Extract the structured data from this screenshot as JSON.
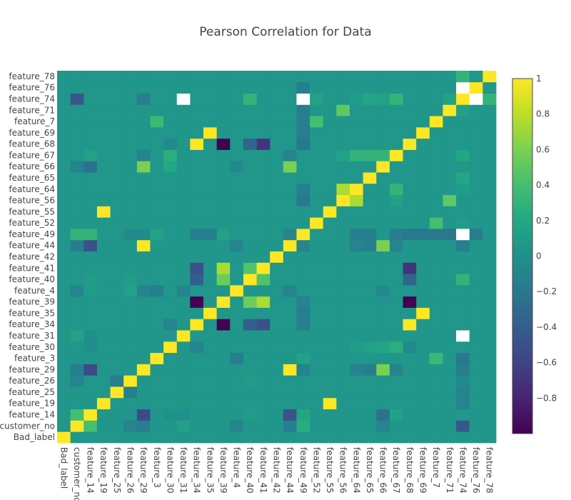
{
  "chart_data": {
    "type": "heatmap",
    "title": "Pearson Correlation for Data",
    "xlabel": "",
    "ylabel": "",
    "colorscale": "viridis",
    "zlim": [
      -1,
      1
    ],
    "colorbar_ticks": [
      {
        "value": 1,
        "label": "1"
      },
      {
        "value": 0.8,
        "label": "0.8"
      },
      {
        "value": 0.6,
        "label": "0.6"
      },
      {
        "value": 0.4,
        "label": "0.4"
      },
      {
        "value": 0.2,
        "label": "0.2"
      },
      {
        "value": 0,
        "label": "0"
      },
      {
        "value": -0.2,
        "label": "−0.2"
      },
      {
        "value": -0.4,
        "label": "−0.4"
      },
      {
        "value": -0.6,
        "label": "−0.6"
      },
      {
        "value": -0.8,
        "label": "−0.8"
      }
    ],
    "x_labels": [
      "Bad_label",
      "customer_no",
      "feature_14",
      "feature_19",
      "feature_25",
      "feature_26",
      "feature_29",
      "feature_3",
      "feature_30",
      "feature_31",
      "feature_34",
      "feature_35",
      "feature_39",
      "feature_4",
      "feature_40",
      "feature_41",
      "feature_42",
      "feature_44",
      "feature_49",
      "feature_52",
      "feature_55",
      "feature_56",
      "feature_64",
      "feature_65",
      "feature_66",
      "feature_67",
      "feature_68",
      "feature_69",
      "feature_7",
      "feature_71",
      "feature_74",
      "feature_76",
      "feature_78"
    ],
    "y_labels": [
      "Bad_label",
      "customer_no",
      "feature_14",
      "feature_19",
      "feature_25",
      "feature_26",
      "feature_29",
      "feature_3",
      "feature_30",
      "feature_31",
      "feature_34",
      "feature_35",
      "feature_39",
      "feature_4",
      "feature_40",
      "feature_41",
      "feature_42",
      "feature_44",
      "feature_49",
      "feature_52",
      "feature_55",
      "feature_56",
      "feature_64",
      "feature_65",
      "feature_66",
      "feature_67",
      "feature_68",
      "feature_69",
      "feature_7",
      "feature_71",
      "feature_74",
      "feature_76",
      "feature_78"
    ],
    "z": [
      [
        1.0,
        0.05,
        0.05,
        0.05,
        0.05,
        0.05,
        0.05,
        0.05,
        0.05,
        0.05,
        0.05,
        0.05,
        0.05,
        0.05,
        0.05,
        0.05,
        0.05,
        0.05,
        0.05,
        0.05,
        0.05,
        0.05,
        0.05,
        0.05,
        0.05,
        0.05,
        0.05,
        0.05,
        0.05,
        0.05,
        0.05,
        0.05,
        0.05
      ],
      [
        0.05,
        1.0,
        0.4,
        0.05,
        0.05,
        -0.1,
        -0.15,
        0.05,
        0.05,
        0.15,
        0.05,
        0.05,
        0.05,
        -0.1,
        0.05,
        0.05,
        0.05,
        -0.15,
        0.25,
        0.05,
        0.05,
        0.05,
        0.05,
        0.05,
        -0.1,
        0.05,
        0.05,
        0.05,
        0.05,
        0.05,
        -0.45,
        0.05,
        0.05
      ],
      [
        0.05,
        0.4,
        1.0,
        0.05,
        0.05,
        0.05,
        -0.55,
        0.05,
        0.0,
        0.0,
        0.05,
        0.05,
        0.05,
        0.05,
        0.1,
        0.05,
        0.05,
        -0.5,
        0.2,
        0.05,
        0.05,
        0.05,
        0.05,
        0.05,
        -0.25,
        0.15,
        0.05,
        0.05,
        0.05,
        0.05,
        0.05,
        0.05,
        0.05
      ],
      [
        0.05,
        0.05,
        0.05,
        1.0,
        0.05,
        0.05,
        0.05,
        0.05,
        0.05,
        0.05,
        0.05,
        0.05,
        0.05,
        0.05,
        0.05,
        0.05,
        0.05,
        0.05,
        0.05,
        0.05,
        1.0,
        0.05,
        0.05,
        0.05,
        0.05,
        0.05,
        0.05,
        0.05,
        0.05,
        0.05,
        -0.1,
        0.05,
        0.05
      ],
      [
        0.05,
        0.05,
        0.05,
        0.05,
        1.0,
        -0.15,
        0.05,
        0.05,
        0.05,
        0.05,
        0.05,
        0.05,
        0.05,
        0.05,
        0.05,
        0.05,
        0.05,
        0.05,
        0.05,
        0.05,
        0.05,
        0.05,
        0.05,
        0.05,
        0.05,
        0.05,
        0.05,
        0.05,
        0.05,
        0.05,
        -0.1,
        0.05,
        0.05
      ],
      [
        0.05,
        -0.1,
        0.05,
        0.05,
        -0.15,
        1.0,
        0.05,
        0.05,
        0.05,
        0.05,
        0.05,
        0.05,
        0.05,
        0.05,
        0.1,
        0.05,
        0.05,
        0.05,
        0.05,
        0.05,
        0.05,
        0.05,
        0.05,
        0.05,
        0.05,
        0.05,
        0.05,
        0.05,
        0.05,
        0.05,
        -0.05,
        0.05,
        0.05
      ],
      [
        0.05,
        -0.15,
        -0.55,
        0.05,
        0.05,
        0.05,
        1.0,
        0.05,
        0.05,
        0.05,
        0.05,
        0.05,
        0.05,
        0.05,
        0.05,
        0.05,
        0.05,
        1.0,
        -0.1,
        0.05,
        0.05,
        0.05,
        -0.1,
        -0.15,
        0.6,
        -0.1,
        0.05,
        0.05,
        0.05,
        0.05,
        -0.15,
        0.05,
        0.05
      ],
      [
        0.05,
        0.05,
        0.05,
        0.05,
        0.05,
        0.05,
        0.05,
        1.0,
        0.05,
        0.05,
        0.05,
        0.05,
        0.05,
        -0.15,
        0.05,
        0.05,
        0.05,
        0.05,
        0.15,
        0.05,
        0.05,
        0.05,
        0.05,
        0.05,
        0.05,
        0.05,
        0.05,
        0.05,
        0.35,
        0.05,
        -0.2,
        0.05,
        0.05
      ],
      [
        0.05,
        0.05,
        0.0,
        0.05,
        0.05,
        0.05,
        0.05,
        0.05,
        1.0,
        0.05,
        -0.1,
        0.05,
        0.05,
        0.05,
        0.05,
        0.05,
        0.05,
        0.05,
        0.05,
        0.05,
        0.05,
        0.05,
        0.1,
        0.15,
        0.2,
        0.25,
        -0.05,
        0.05,
        0.05,
        0.05,
        0.05,
        0.05,
        0.05
      ],
      [
        0.05,
        0.15,
        0.0,
        0.05,
        0.05,
        0.05,
        0.05,
        0.05,
        0.05,
        1.0,
        0.05,
        0.05,
        0.05,
        0.05,
        0.05,
        0.05,
        0.05,
        0.05,
        0.05,
        0.05,
        0.05,
        0.05,
        0.05,
        0.05,
        0.05,
        0.05,
        0.05,
        0.05,
        0.05,
        0.05,
        null,
        0.05,
        0.05
      ],
      [
        0.05,
        0.05,
        0.05,
        0.05,
        0.05,
        0.05,
        0.05,
        0.05,
        -0.1,
        0.05,
        1.0,
        0.05,
        -1.0,
        0.05,
        -0.4,
        -0.5,
        0.05,
        0.05,
        -0.15,
        0.05,
        0.05,
        0.05,
        0.05,
        0.05,
        0.05,
        0.05,
        1.0,
        0.05,
        0.05,
        0.05,
        0.05,
        0.05,
        0.05
      ],
      [
        0.05,
        0.05,
        0.05,
        0.05,
        0.05,
        0.05,
        0.05,
        0.05,
        0.05,
        0.05,
        0.05,
        1.0,
        0.05,
        0.05,
        0.05,
        0.05,
        0.05,
        0.05,
        -0.15,
        0.05,
        0.05,
        0.05,
        0.05,
        0.05,
        0.05,
        0.05,
        0.05,
        1.0,
        0.05,
        0.05,
        0.05,
        0.05,
        0.05
      ],
      [
        0.05,
        0.05,
        0.05,
        0.05,
        0.05,
        0.05,
        0.05,
        0.05,
        0.05,
        0.05,
        -1.0,
        0.05,
        1.0,
        0.05,
        0.55,
        0.75,
        0.05,
        0.05,
        -0.1,
        0.05,
        0.05,
        0.05,
        0.05,
        0.05,
        0.05,
        0.05,
        -1.0,
        0.05,
        0.05,
        0.05,
        0.05,
        0.05,
        0.05
      ],
      [
        0.05,
        -0.1,
        0.1,
        0.05,
        0.05,
        0.15,
        -0.1,
        -0.15,
        0.05,
        -0.1,
        0.05,
        0.05,
        0.05,
        1.0,
        0.05,
        0.05,
        0.05,
        -0.1,
        0.05,
        0.05,
        0.05,
        0.05,
        0.05,
        0.05,
        -0.05,
        0.05,
        0.05,
        0.05,
        0.05,
        0.05,
        0.05,
        0.05,
        0.05
      ],
      [
        0.05,
        0.05,
        0.1,
        0.05,
        0.05,
        0.1,
        0.05,
        0.05,
        0.05,
        0.05,
        -0.4,
        0.05,
        0.55,
        0.05,
        1.0,
        0.45,
        0.05,
        0.05,
        0.05,
        0.05,
        0.05,
        0.05,
        0.05,
        0.05,
        0.05,
        0.05,
        -0.35,
        0.05,
        0.05,
        0.05,
        0.3,
        0.05,
        0.05
      ],
      [
        0.05,
        0.05,
        0.05,
        0.05,
        0.05,
        0.05,
        0.05,
        0.05,
        0.05,
        0.05,
        -0.5,
        0.05,
        0.75,
        0.05,
        0.45,
        1.0,
        0.05,
        0.05,
        0.05,
        0.05,
        0.05,
        0.05,
        0.05,
        0.05,
        0.05,
        0.05,
        -0.7,
        0.05,
        0.05,
        0.05,
        0.05,
        0.05,
        0.05
      ],
      [
        0.05,
        0.05,
        0.05,
        0.05,
        0.05,
        0.05,
        0.05,
        0.05,
        0.05,
        0.05,
        0.05,
        0.05,
        0.05,
        0.05,
        0.05,
        0.05,
        1.0,
        0.05,
        0.05,
        0.05,
        0.05,
        0.05,
        0.05,
        0.05,
        0.05,
        0.05,
        0.05,
        0.05,
        0.05,
        0.05,
        0.05,
        0.05,
        0.05
      ],
      [
        0.05,
        -0.15,
        -0.5,
        0.05,
        0.05,
        0.05,
        1.0,
        0.05,
        0.05,
        0.05,
        0.05,
        0.05,
        0.05,
        -0.1,
        0.05,
        0.05,
        0.05,
        1.0,
        -0.1,
        0.05,
        0.05,
        0.05,
        -0.1,
        -0.15,
        0.6,
        -0.1,
        0.05,
        0.05,
        0.05,
        0.05,
        -0.15,
        0.05,
        0.05
      ],
      [
        0.05,
        0.3,
        0.3,
        0.05,
        0.05,
        -0.05,
        -0.05,
        0.15,
        0.05,
        0.05,
        -0.15,
        -0.15,
        0.15,
        0.05,
        0.05,
        0.05,
        0.05,
        -0.1,
        1.0,
        0.05,
        0.05,
        0.05,
        -0.15,
        -0.15,
        0.05,
        -0.15,
        -0.2,
        -0.2,
        -0.2,
        -0.2,
        null,
        -0.15,
        0.05
      ],
      [
        0.05,
        0.05,
        0.05,
        0.05,
        0.05,
        0.05,
        0.05,
        0.05,
        0.05,
        0.05,
        0.05,
        0.05,
        0.05,
        0.05,
        0.05,
        0.05,
        0.05,
        0.05,
        0.05,
        1.0,
        0.05,
        0.05,
        0.05,
        0.05,
        0.05,
        0.05,
        0.05,
        0.05,
        0.4,
        0.05,
        0.1,
        0.05,
        0.05
      ],
      [
        0.05,
        0.05,
        0.05,
        1.0,
        0.05,
        0.05,
        0.05,
        0.05,
        0.05,
        0.05,
        0.05,
        0.05,
        0.05,
        0.05,
        0.05,
        0.05,
        0.05,
        0.05,
        0.05,
        0.05,
        1.0,
        0.05,
        0.05,
        0.05,
        0.05,
        0.05,
        0.05,
        0.05,
        0.05,
        0.05,
        0.05,
        0.05,
        0.05
      ],
      [
        0.05,
        0.05,
        0.05,
        0.05,
        0.05,
        0.05,
        0.05,
        0.05,
        0.05,
        0.05,
        0.05,
        0.05,
        0.05,
        0.05,
        0.05,
        0.05,
        0.05,
        0.05,
        -0.2,
        0.05,
        0.05,
        1.0,
        0.75,
        0.05,
        0.05,
        0.15,
        0.05,
        0.05,
        0.05,
        0.5,
        0.05,
        0.05,
        0.05
      ],
      [
        0.05,
        0.05,
        0.05,
        0.05,
        0.05,
        0.05,
        0.05,
        0.05,
        0.05,
        0.05,
        0.05,
        0.05,
        0.05,
        0.05,
        0.05,
        0.05,
        0.05,
        0.05,
        -0.15,
        0.05,
        0.05,
        0.75,
        1.0,
        0.05,
        0.05,
        0.3,
        0.05,
        0.05,
        0.05,
        0.05,
        0.1,
        0.05,
        0.05
      ],
      [
        0.05,
        0.05,
        0.05,
        0.05,
        0.05,
        0.05,
        0.05,
        0.05,
        0.05,
        0.05,
        0.05,
        0.05,
        0.05,
        0.05,
        0.05,
        0.05,
        0.05,
        0.05,
        0.05,
        0.05,
        0.05,
        0.05,
        0.05,
        1.0,
        0.05,
        0.05,
        0.05,
        0.05,
        0.05,
        0.05,
        0.2,
        0.05,
        0.05
      ],
      [
        0.05,
        -0.1,
        -0.25,
        0.05,
        0.05,
        0.05,
        0.6,
        0.05,
        0.2,
        0.05,
        0.05,
        0.05,
        0.05,
        -0.05,
        0.05,
        0.05,
        0.05,
        0.6,
        0.05,
        0.05,
        0.05,
        0.05,
        0.05,
        0.05,
        1.0,
        0.05,
        0.05,
        0.05,
        0.05,
        0.05,
        0.05,
        0.05,
        0.05
      ],
      [
        0.05,
        0.05,
        0.15,
        0.05,
        0.05,
        0.05,
        -0.1,
        0.05,
        0.25,
        0.05,
        0.05,
        0.05,
        0.05,
        0.05,
        0.05,
        0.05,
        0.05,
        -0.1,
        0.05,
        0.05,
        0.05,
        0.15,
        0.3,
        0.3,
        0.3,
        1.0,
        0.05,
        0.05,
        0.05,
        0.05,
        0.2,
        0.05,
        0.05
      ],
      [
        0.05,
        0.05,
        0.05,
        0.05,
        0.05,
        0.05,
        0.05,
        0.05,
        -0.05,
        0.05,
        1.0,
        0.05,
        -1.0,
        0.05,
        -0.35,
        -0.7,
        0.05,
        0.05,
        -0.2,
        0.05,
        0.05,
        0.05,
        0.05,
        0.05,
        0.05,
        0.05,
        1.0,
        0.05,
        0.05,
        0.05,
        0.05,
        0.05,
        0.05
      ],
      [
        0.05,
        0.05,
        0.05,
        0.05,
        0.05,
        0.05,
        0.05,
        0.05,
        0.05,
        0.05,
        0.05,
        1.0,
        0.05,
        0.05,
        0.05,
        0.05,
        0.05,
        0.05,
        -0.15,
        0.05,
        0.05,
        0.05,
        0.05,
        0.05,
        0.05,
        0.05,
        0.05,
        1.0,
        0.05,
        0.05,
        0.05,
        0.05,
        0.05
      ],
      [
        0.05,
        0.05,
        0.05,
        0.05,
        0.05,
        0.05,
        0.05,
        0.35,
        0.05,
        0.05,
        0.05,
        0.05,
        0.05,
        0.05,
        0.05,
        0.05,
        0.05,
        0.05,
        -0.15,
        0.4,
        0.05,
        0.05,
        0.05,
        0.05,
        0.05,
        0.05,
        0.05,
        0.05,
        1.0,
        0.05,
        0.05,
        0.05,
        0.05
      ],
      [
        0.05,
        0.05,
        0.05,
        0.05,
        0.05,
        0.05,
        0.05,
        0.05,
        0.05,
        0.05,
        0.05,
        0.05,
        0.05,
        0.05,
        0.05,
        0.05,
        0.05,
        0.05,
        -0.15,
        0.05,
        0.05,
        0.5,
        0.05,
        0.05,
        0.05,
        0.05,
        0.05,
        0.05,
        0.05,
        1.0,
        0.15,
        0.05,
        0.05
      ],
      [
        0.05,
        -0.45,
        0.05,
        0.05,
        0.05,
        0.05,
        -0.15,
        0.05,
        0.05,
        null,
        0.05,
        0.05,
        0.05,
        0.05,
        0.3,
        0.05,
        0.05,
        0.05,
        null,
        0.15,
        0.05,
        0.05,
        0.1,
        0.2,
        0.15,
        0.3,
        0.05,
        0.05,
        0.05,
        0.15,
        1.0,
        null,
        0.3
      ],
      [
        0.05,
        0.05,
        0.05,
        0.05,
        0.05,
        0.05,
        0.05,
        0.05,
        0.05,
        0.05,
        0.05,
        0.05,
        0.05,
        0.05,
        0.05,
        0.05,
        0.05,
        0.05,
        -0.15,
        0.05,
        0.05,
        0.05,
        0.05,
        0.05,
        0.05,
        0.05,
        0.05,
        0.05,
        0.05,
        0.05,
        null,
        1.0,
        0.05
      ],
      [
        0.05,
        0.05,
        0.05,
        0.05,
        0.05,
        0.05,
        0.05,
        0.05,
        0.05,
        0.05,
        0.05,
        0.05,
        0.05,
        0.05,
        0.05,
        0.05,
        0.05,
        0.05,
        0.05,
        0.05,
        0.05,
        0.05,
        0.05,
        0.05,
        0.05,
        0.05,
        0.05,
        0.05,
        0.05,
        0.05,
        0.3,
        0.05,
        1.0
      ]
    ]
  }
}
